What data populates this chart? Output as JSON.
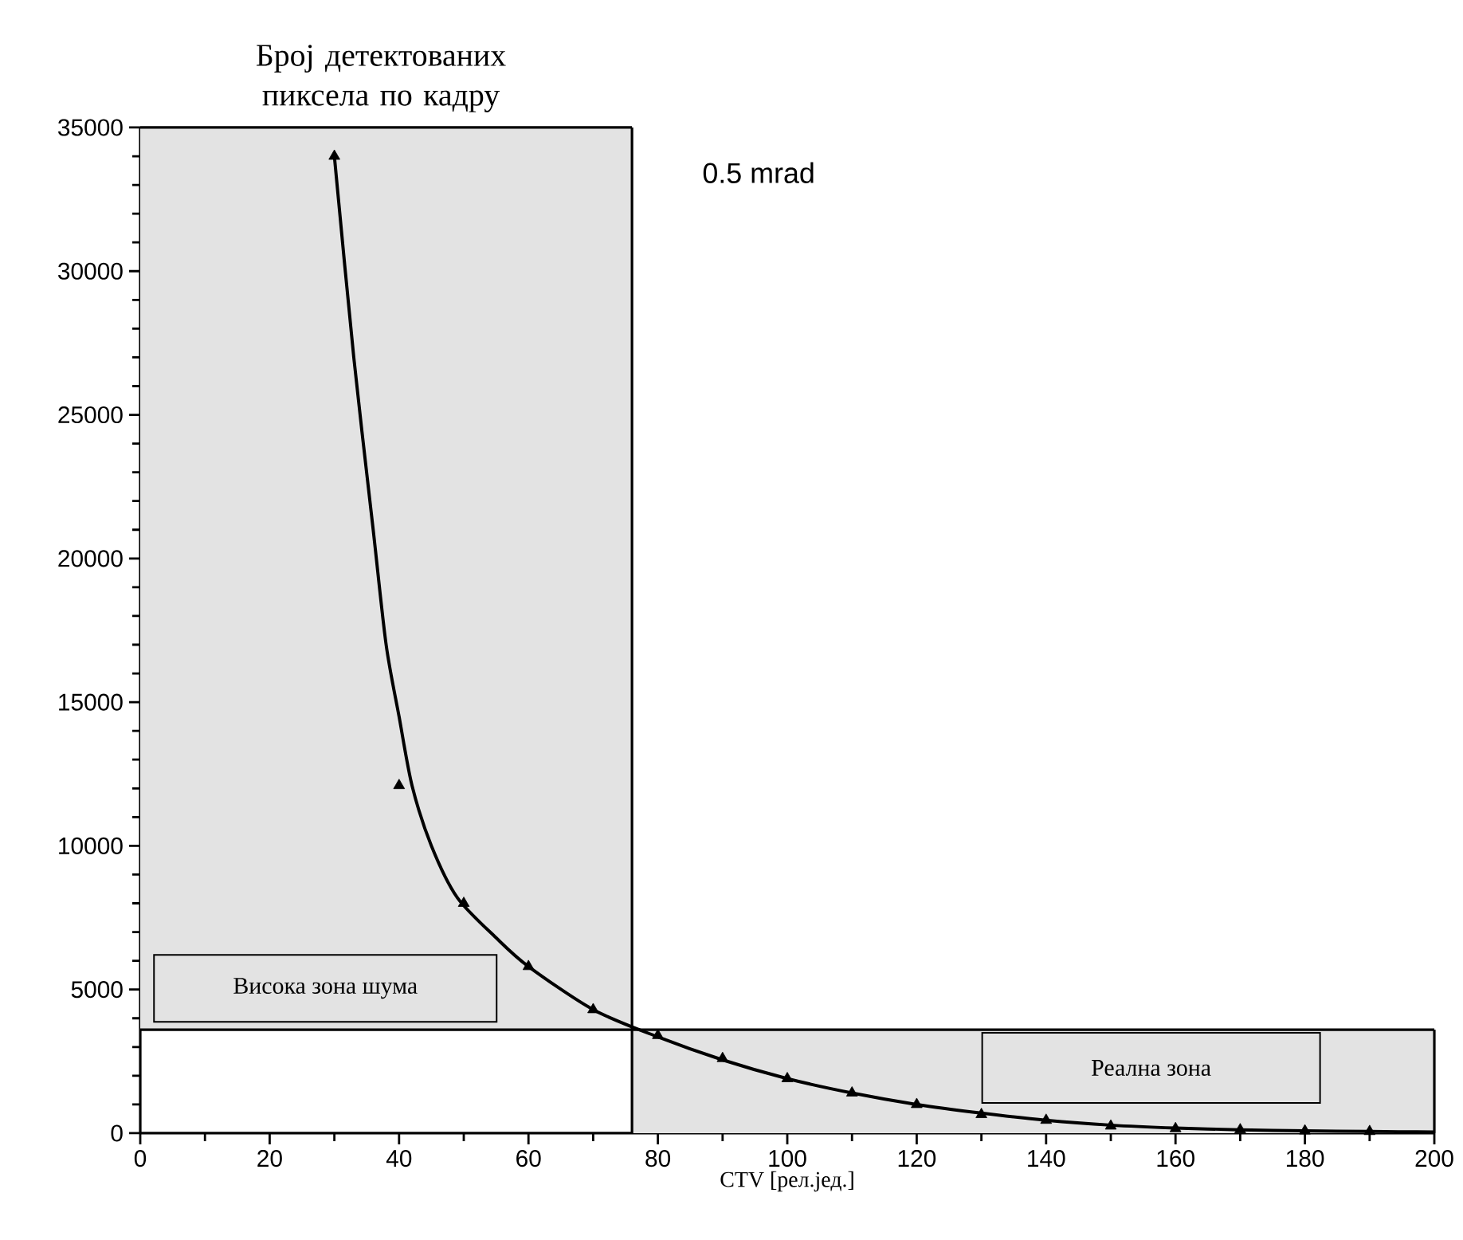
{
  "chart_data": {
    "type": "scatter",
    "ylabel": "Број детектованих пиксела по кадру",
    "xlabel": "CTV [рел.јед.]",
    "annotations": [
      "0.5 mrad"
    ],
    "xlim": [
      0,
      200
    ],
    "xticks": [
      0,
      20,
      40,
      60,
      80,
      100,
      120,
      140,
      160,
      180,
      200
    ],
    "ylim": [
      0,
      35000
    ],
    "yticks": [
      0,
      5000,
      10000,
      15000,
      20000,
      25000,
      30000,
      35000
    ],
    "series": [
      {
        "marker": "triangle",
        "color": "#000000",
        "x": [
          30,
          40,
          50,
          60,
          70,
          80,
          90,
          100,
          110,
          120,
          130,
          140,
          150,
          160,
          170,
          180,
          190
        ],
        "values": [
          34000,
          12100,
          8000,
          5800,
          4300,
          3400,
          2600,
          1900,
          1400,
          1000,
          650,
          450,
          250,
          160,
          120,
          80,
          60
        ]
      },
      {
        "type": "line",
        "marker": "none",
        "line_style": "solid",
        "color": "#000000",
        "x": [
          30,
          33,
          36,
          38,
          40,
          42,
          45,
          49,
          55,
          60,
          70,
          80,
          90,
          100,
          110,
          120,
          130,
          140,
          150,
          160,
          170,
          180,
          190,
          200
        ],
        "values": [
          34000,
          27000,
          21000,
          17000,
          14500,
          12100,
          10000,
          8200,
          6800,
          5800,
          4300,
          3350,
          2550,
          1900,
          1400,
          1000,
          700,
          450,
          280,
          180,
          120,
          80,
          60,
          40
        ]
      }
    ],
    "ref_lines": [
      {
        "axis": "x",
        "value": 76
      },
      {
        "axis": "y",
        "value": 3600
      }
    ],
    "bands": [
      {
        "axis": "x",
        "from": 0,
        "to": 76,
        "label": "Висока зона шума",
        "color": "#e3e3e3"
      },
      {
        "axis": "x",
        "from": 76,
        "to": 200,
        "label": "Реална зона",
        "color": "#e3e3e3"
      }
    ]
  }
}
